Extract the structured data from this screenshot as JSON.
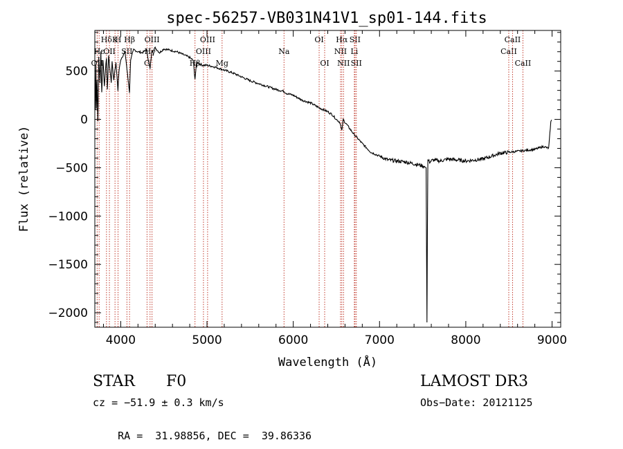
{
  "chart_data": {
    "type": "line",
    "title": "spec-56257-VB031N41V1_sp01-144.fits",
    "xlabel": "Wavelength (Å)",
    "ylabel": "Flux (relative)",
    "xlim": [
      3700,
      9100
    ],
    "ylim": [
      -2150,
      920
    ],
    "xticks": [
      4000,
      5000,
      6000,
      7000,
      8000,
      9000
    ],
    "yticks": [
      500,
      0,
      -500,
      -1000,
      -1500,
      -2000
    ],
    "ytick_labels": [
      "500",
      "0",
      "−500",
      "−1000",
      "−1500",
      "−2000"
    ],
    "spectrum": {
      "x": [
        3705,
        3712,
        3718,
        3725,
        3735,
        3745,
        3760,
        3770,
        3780,
        3795,
        3810,
        3835,
        3845,
        3860,
        3890,
        3900,
        3920,
        3933,
        3945,
        3968,
        3980,
        4000,
        4050,
        4102,
        4115,
        4150,
        4200,
        4250,
        4300,
        4340,
        4360,
        4400,
        4450,
        4500,
        4550,
        4600,
        4650,
        4700,
        4750,
        4800,
        4840,
        4861,
        4880,
        4900,
        4950,
        5000,
        5100,
        5200,
        5300,
        5400,
        5500,
        5600,
        5700,
        5800,
        5893,
        5920,
        6000,
        6100,
        6200,
        6300,
        6400,
        6450,
        6500,
        6540,
        6563,
        6580,
        6600,
        6700,
        6800,
        6900,
        7000,
        7100,
        7200,
        7300,
        7400,
        7500,
        7540,
        7545,
        7550,
        7555,
        7560,
        7580,
        7620,
        7700,
        7800,
        7900,
        8000,
        8100,
        8200,
        8300,
        8400,
        8500,
        8600,
        8700,
        8800,
        8900,
        8960,
        8970,
        8985,
        8995
      ],
      "y": [
        100,
        560,
        120,
        400,
        -20,
        640,
        380,
        700,
        280,
        620,
        350,
        640,
        300,
        660,
        380,
        600,
        400,
        520,
        580,
        300,
        500,
        620,
        700,
        280,
        620,
        720,
        700,
        690,
        720,
        520,
        700,
        740,
        690,
        730,
        720,
        710,
        700,
        680,
        660,
        640,
        610,
        420,
        590,
        580,
        560,
        560,
        540,
        510,
        480,
        440,
        400,
        370,
        340,
        310,
        290,
        270,
        250,
        200,
        170,
        120,
        80,
        50,
        0,
        -30,
        -120,
        0,
        -30,
        -150,
        -250,
        -340,
        -380,
        -420,
        -430,
        -440,
        -460,
        -480,
        -500,
        -1350,
        -2100,
        -1200,
        -420,
        -440,
        -420,
        -430,
        -410,
        -420,
        -430,
        -420,
        -410,
        -380,
        -350,
        -340,
        -330,
        -320,
        -310,
        -280,
        -300,
        -200,
        -30,
        -5
      ]
    },
    "lines": [
      {
        "name": "OII",
        "wl": 3727,
        "label_row": 3
      },
      {
        "name": "Hε",
        "wl": 3750,
        "label_row": 2
      },
      {
        "name": "Hδ",
        "wl": 3835,
        "label_row": 1
      },
      {
        "name": "K",
        "wl": 3934,
        "label_row": 1
      },
      {
        "name": "H",
        "wl": 3969,
        "label_row": 1
      },
      {
        "name": "OII",
        "wl": 3869,
        "label_row": 2
      },
      {
        "name": "SII",
        "wl": 4072,
        "label_row": 2
      },
      {
        "name": "Hβ",
        "wl": 4102,
        "label_row": 1
      },
      {
        "name": "G",
        "wl": 4305,
        "label_row": 3
      },
      {
        "name": "Hγ",
        "wl": 4340,
        "label_row": 2
      },
      {
        "name": "OIII",
        "wl": 4363,
        "label_row": 1
      },
      {
        "name": "Hβ",
        "wl": 4861,
        "label_row": 3
      },
      {
        "name": "OIII",
        "wl": 4959,
        "label_row": 2
      },
      {
        "name": "OIII",
        "wl": 5007,
        "label_row": 1
      },
      {
        "name": "Mg",
        "wl": 5175,
        "label_row": 3
      },
      {
        "name": "Na",
        "wl": 5893,
        "label_row": 2
      },
      {
        "name": "OI",
        "wl": 6300,
        "label_row": 1
      },
      {
        "name": "OI",
        "wl": 6364,
        "label_row": 3
      },
      {
        "name": "NII",
        "wl": 6548,
        "label_row": 2
      },
      {
        "name": "Hα",
        "wl": 6563,
        "label_row": 1
      },
      {
        "name": "NII",
        "wl": 6583,
        "label_row": 3
      },
      {
        "name": "Li",
        "wl": 6708,
        "label_row": 2
      },
      {
        "name": "SII",
        "wl": 6716,
        "label_row": 1
      },
      {
        "name": "SII",
        "wl": 6731,
        "label_row": 3
      },
      {
        "name": "CaII",
        "wl": 8498,
        "label_row": 2
      },
      {
        "name": "CaII",
        "wl": 8542,
        "label_row": 1
      },
      {
        "name": "CaII",
        "wl": 8662,
        "label_row": 3
      }
    ]
  },
  "info": {
    "class": "STAR",
    "subclass": "F0",
    "survey": "LAMOST DR3",
    "cz": "cz = −51.9 ± 0.3 km/s",
    "obs_date": "Obs−Date: 20121125",
    "radec": "RA =  31.98856, DEC =  39.86336"
  }
}
